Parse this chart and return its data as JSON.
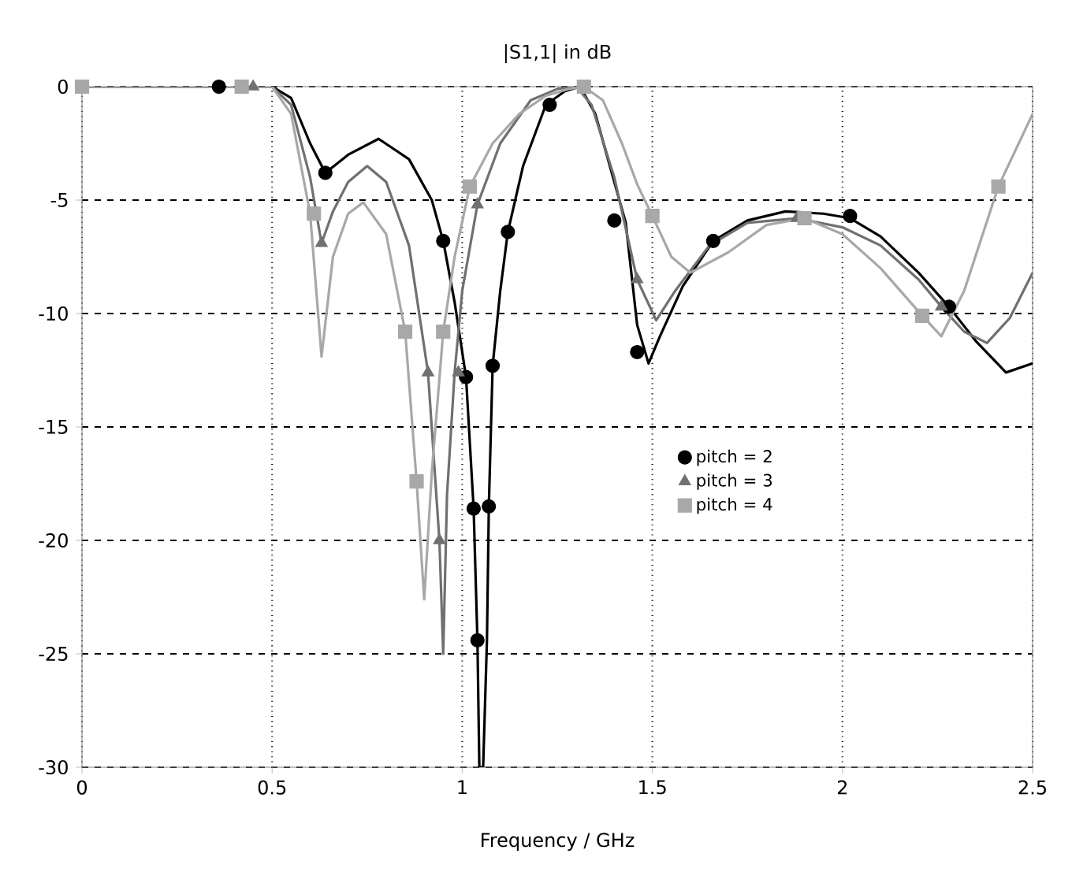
{
  "chart_data": {
    "type": "line",
    "title": "|S1,1| in dB",
    "xlabel": "Frequency / GHz",
    "xlim": [
      0,
      2.5
    ],
    "ylim": [
      -30,
      0
    ],
    "xticks": [
      0,
      0.5,
      1,
      1.5,
      2,
      2.5
    ],
    "yticks": [
      0,
      -5,
      -10,
      -15,
      -20,
      -25,
      -30
    ],
    "grid": true,
    "legend": "right",
    "series": [
      {
        "marker": "none",
        "color": "#000000",
        "x": [
          0,
          0.5,
          0.55,
          0.6,
          0.64,
          0.7,
          0.78,
          0.86,
          0.92,
          0.95,
          0.98,
          1.01,
          1.03,
          1.04,
          1.045,
          1.055,
          1.065,
          1.07,
          1.08,
          1.1,
          1.12,
          1.16,
          1.22,
          1.27,
          1.31,
          1.35,
          1.4,
          1.43,
          1.46,
          1.49,
          1.52,
          1.58,
          1.66,
          1.75,
          1.85,
          1.95,
          2.02,
          2.1,
          2.2,
          2.28,
          2.35,
          2.43,
          2.5
        ],
        "values": [
          0,
          0,
          -0.5,
          -2.5,
          -3.8,
          -3.0,
          -2.3,
          -3.2,
          -5.0,
          -6.8,
          -9.5,
          -12.8,
          -18.6,
          -24.4,
          -30,
          -30,
          -24.4,
          -18.5,
          -12.3,
          -9,
          -6.4,
          -3.5,
          -0.8,
          -0.2,
          0,
          -1.2,
          -4.2,
          -6.0,
          -10.5,
          -12.2,
          -11,
          -8.8,
          -6.8,
          -5.9,
          -5.5,
          -5.6,
          -5.8,
          -6.6,
          -8.2,
          -9.7,
          -11.2,
          -12.6,
          -12.2
        ]
      },
      {
        "marker": "none",
        "color": "#707070",
        "x": [
          0,
          0.5,
          0.55,
          0.6,
          0.63,
          0.66,
          0.7,
          0.75,
          0.8,
          0.86,
          0.91,
          0.94,
          0.95,
          0.96,
          0.98,
          1.0,
          1.04,
          1.1,
          1.18,
          1.25,
          1.3,
          1.34,
          1.4,
          1.46,
          1.51,
          1.56,
          1.65,
          1.75,
          1.88,
          2.0,
          2.1,
          2.2,
          2.26,
          2.32,
          2.38,
          2.44,
          2.5
        ],
        "values": [
          0,
          0,
          -0.8,
          -4,
          -6.9,
          -5.5,
          -4.2,
          -3.5,
          -4.2,
          -7,
          -12.6,
          -20,
          -25,
          -18,
          -12.6,
          -9,
          -5.2,
          -2.5,
          -0.6,
          -0.1,
          0,
          -0.8,
          -4,
          -8.5,
          -10.3,
          -9,
          -7,
          -6,
          -5.8,
          -6.2,
          -7,
          -8.5,
          -9.7,
          -10.8,
          -11.3,
          -10.2,
          -8.2
        ]
      },
      {
        "marker": "none",
        "color": "#a8a8a8",
        "x": [
          0,
          0.5,
          0.55,
          0.6,
          0.63,
          0.66,
          0.7,
          0.74,
          0.8,
          0.85,
          0.88,
          0.9,
          0.92,
          0.95,
          0.98,
          1.02,
          1.08,
          1.15,
          1.22,
          1.28,
          1.32,
          1.37,
          1.42,
          1.46,
          1.5,
          1.55,
          1.6,
          1.7,
          1.8,
          1.9,
          2.0,
          2.1,
          2.21,
          2.26,
          2.32,
          2.41,
          2.5
        ],
        "values": [
          0,
          0,
          -1.2,
          -5.6,
          -11.9,
          -7.5,
          -5.6,
          -5.1,
          -6.5,
          -10.8,
          -17.4,
          -22.6,
          -17,
          -10.8,
          -7.5,
          -4.4,
          -2.5,
          -1.2,
          -0.4,
          -0.1,
          0,
          -0.6,
          -2.5,
          -4.3,
          -5.7,
          -7.5,
          -8.2,
          -7.3,
          -6.1,
          -5.8,
          -6.5,
          -8,
          -10.1,
          -11,
          -9,
          -4.4,
          -1.2
        ]
      },
      {
        "type": "scatter",
        "name": "pitch = 2",
        "marker": "circle",
        "color": "#000000",
        "x": [
          0.36,
          0.64,
          0.95,
          1.01,
          1.03,
          1.04,
          1.07,
          1.08,
          1.12,
          1.23,
          1.4,
          1.46,
          1.66,
          2.02,
          2.28
        ],
        "values": [
          0,
          -3.8,
          -6.8,
          -12.8,
          -18.6,
          -24.4,
          -18.5,
          -12.3,
          -6.4,
          -0.8,
          -5.9,
          -11.7,
          -6.8,
          -5.7,
          -9.7
        ]
      },
      {
        "type": "scatter",
        "name": "pitch = 3",
        "marker": "triangle",
        "color": "#707070",
        "x": [
          0.45,
          0.63,
          0.91,
          0.94,
          0.99,
          1.04,
          1.46,
          1.88,
          2.26
        ],
        "values": [
          0,
          -6.9,
          -12.6,
          -20,
          -12.6,
          -5.2,
          -8.5,
          -5.8,
          -9.7
        ]
      },
      {
        "type": "scatter",
        "name": "pitch = 4",
        "marker": "square",
        "color": "#a8a8a8",
        "x": [
          0,
          0.42,
          0.61,
          0.85,
          0.88,
          0.95,
          1.02,
          1.32,
          1.5,
          1.9,
          2.21,
          2.41
        ],
        "values": [
          0,
          0,
          -5.6,
          -10.8,
          -17.4,
          -10.8,
          -4.4,
          0,
          -5.7,
          -5.8,
          -10.1,
          -4.4
        ]
      }
    ]
  }
}
